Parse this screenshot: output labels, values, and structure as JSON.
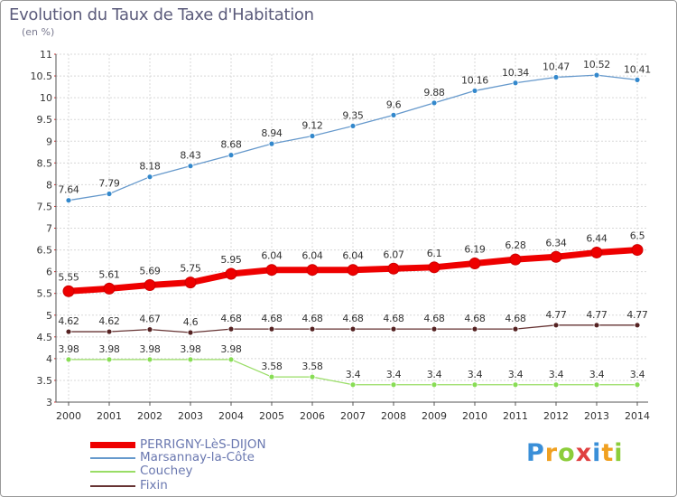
{
  "chart_data": {
    "type": "line",
    "title": "Evolution du Taux de Taxe d'Habitation",
    "unit_label": "(en %)",
    "x": [
      "2000",
      "2001",
      "2002",
      "2003",
      "2004",
      "2005",
      "2006",
      "2007",
      "2008",
      "2009",
      "2010",
      "2011",
      "2012",
      "2013",
      "2014"
    ],
    "ylim": [
      3,
      11
    ],
    "y_ticks": [
      "3",
      "3.5",
      "4",
      "4.5",
      "5",
      "5.5",
      "6",
      "6.5",
      "7",
      "7.5",
      "8",
      "8.5",
      "9",
      "9.5",
      "10",
      "10.5",
      "11"
    ],
    "y_tick_values": [
      3,
      3.5,
      4,
      4.5,
      5,
      5.5,
      6,
      6.5,
      7,
      7.5,
      8,
      8.5,
      9,
      9.5,
      10,
      10.5,
      11
    ],
    "grid": true,
    "legend_position": "bottom-left",
    "series": [
      {
        "name": "PERRIGNY-LèS-DIJON",
        "color": "#ee0000",
        "marker_color": "#ee0000",
        "values": [
          5.55,
          5.61,
          5.69,
          5.75,
          5.95,
          6.04,
          6.04,
          6.04,
          6.07,
          6.1,
          6.19,
          6.28,
          6.34,
          6.44,
          6.5
        ],
        "labels": [
          "5.55",
          "5.61",
          "5.69",
          "5.75",
          "5.95",
          "6.04",
          "6.04",
          "6.04",
          "6.07",
          "6.1",
          "6.19",
          "6.28",
          "6.34",
          "6.44",
          "6.5"
        ]
      },
      {
        "name": "Marsannay-la-Côte",
        "color": "#6699cc",
        "marker_color": "#3388cc",
        "values": [
          7.64,
          7.79,
          8.18,
          8.43,
          8.68,
          8.94,
          9.12,
          9.35,
          9.6,
          9.88,
          10.16,
          10.34,
          10.47,
          10.52,
          10.41
        ],
        "labels": [
          "7.64",
          "7.79",
          "8.18",
          "8.43",
          "8.68",
          "8.94",
          "9.12",
          "9.35",
          "9.6",
          "9.88",
          "10.16",
          "10.34",
          "10.47",
          "10.52",
          "10.41"
        ]
      },
      {
        "name": "Couchey",
        "color": "#99dd66",
        "marker_color": "#88dd55",
        "values": [
          3.98,
          3.98,
          3.98,
          3.98,
          3.98,
          3.58,
          3.58,
          3.4,
          3.4,
          3.4,
          3.4,
          3.4,
          3.4,
          3.4,
          3.4
        ],
        "labels": [
          "3.98",
          "3.98",
          "3.98",
          "3.98",
          "3.98",
          "3.58",
          "3.58",
          "3.4",
          "3.4",
          "3.4",
          "3.4",
          "3.4",
          "3.4",
          "3.4",
          "3.4"
        ]
      },
      {
        "name": "Fixin",
        "color": "#663333",
        "marker_color": "#552222",
        "values": [
          4.62,
          4.62,
          4.67,
          4.6,
          4.68,
          4.68,
          4.68,
          4.68,
          4.68,
          4.68,
          4.68,
          4.68,
          4.77,
          4.77,
          4.77
        ],
        "labels": [
          "4.62",
          "4.62",
          "4.67",
          "4.6",
          "4.68",
          "4.68",
          "4.68",
          "4.68",
          "4.68",
          "4.68",
          "4.68",
          "4.68",
          "4.77",
          "4.77",
          "4.77"
        ]
      }
    ]
  },
  "logo": {
    "letters": [
      "P",
      "r",
      "o",
      "x",
      "i",
      "t",
      "i"
    ],
    "colors": [
      "#3a8fd8",
      "#f0a020",
      "#8ccd3a",
      "#e04040",
      "#3a8fd8",
      "#f0a020",
      "#8ccd3a"
    ]
  }
}
